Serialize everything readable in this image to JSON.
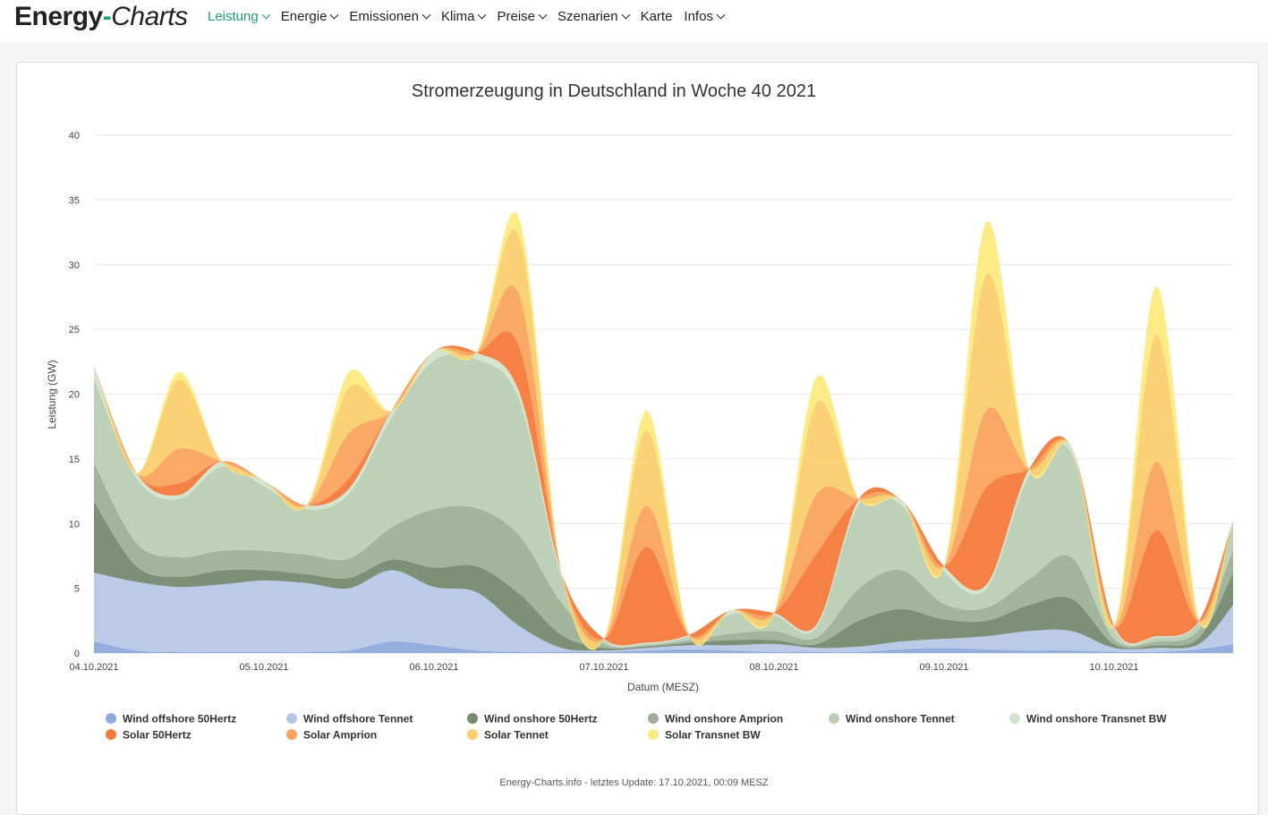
{
  "nav": {
    "logo_main": "Energy",
    "logo_dash": "-",
    "logo_italic": "Charts",
    "items": [
      {
        "label": "Leistung",
        "active": true,
        "dropdown": true
      },
      {
        "label": "Energie",
        "active": false,
        "dropdown": true
      },
      {
        "label": "Emissionen",
        "active": false,
        "dropdown": true
      },
      {
        "label": "Klima",
        "active": false,
        "dropdown": true
      },
      {
        "label": "Preise",
        "active": false,
        "dropdown": true
      },
      {
        "label": "Szenarien",
        "active": false,
        "dropdown": true
      },
      {
        "label": "Karte",
        "active": false,
        "dropdown": false
      },
      {
        "label": "Infos",
        "active": false,
        "dropdown": true
      }
    ]
  },
  "colors": {
    "accent": "#1e9e7a",
    "grid": "#e6e6e6"
  },
  "chart_data": {
    "type": "area",
    "stacked": true,
    "title": "Stromerzeugung in Deutschland in Woche 40 2021",
    "xlabel": "Datum (MESZ)",
    "ylabel": "Leistung (GW)",
    "ylim": [
      0,
      40
    ],
    "yticks": [
      0,
      5,
      10,
      15,
      20,
      25,
      30,
      35,
      40
    ],
    "xlim": [
      0,
      6.7
    ],
    "xticks": [
      0,
      1,
      2,
      3,
      4,
      5,
      6
    ],
    "xtick_labels": [
      "04.10.2021",
      "05.10.2021",
      "06.10.2021",
      "07.10.2021",
      "08.10.2021",
      "09.10.2021",
      "10.10.2021"
    ],
    "x": [
      0,
      0.25,
      0.5,
      0.75,
      1.0,
      1.25,
      1.5,
      1.75,
      2.0,
      2.25,
      2.5,
      2.75,
      3.0,
      3.25,
      3.5,
      3.75,
      4.0,
      4.25,
      4.5,
      4.75,
      5.0,
      5.25,
      5.5,
      5.75,
      6.0,
      6.25,
      6.5,
      6.7
    ],
    "series": [
      {
        "name": "Wind offshore 50Hertz",
        "color": "#8fa9dc",
        "values": [
          0.9,
          0.2,
          0.1,
          0.1,
          0.1,
          0.1,
          0.2,
          0.9,
          0.6,
          0.2,
          0.1,
          0.1,
          0.1,
          0.2,
          0.3,
          0.2,
          0.1,
          0.1,
          0.1,
          0.3,
          0.4,
          0.3,
          0.2,
          0.2,
          0.1,
          0.1,
          0.3,
          0.7
        ]
      },
      {
        "name": "Wind offshore Tennet",
        "color": "#b7c8e6",
        "values": [
          5.3,
          5.3,
          5.0,
          5.2,
          5.5,
          5.3,
          4.8,
          5.5,
          4.5,
          4.5,
          2.0,
          0.3,
          0.1,
          0.2,
          0.3,
          0.4,
          0.6,
          0.3,
          0.4,
          0.6,
          0.7,
          1.0,
          1.5,
          1.5,
          0.3,
          0.3,
          0.4,
          3.0
        ]
      },
      {
        "name": "Wind onshore 50Hertz",
        "color": "#758a70",
        "values": [
          5.5,
          1.2,
          0.8,
          1.1,
          0.8,
          0.7,
          0.8,
          0.8,
          1.5,
          2.0,
          2.5,
          1.0,
          0.2,
          0.1,
          0.2,
          0.4,
          0.3,
          0.3,
          2.0,
          2.5,
          1.5,
          1.2,
          2.0,
          2.5,
          0.3,
          0.2,
          0.5,
          2.5
        ]
      },
      {
        "name": "Wind onshore Amprion",
        "color": "#9db097",
        "values": [
          3.0,
          1.8,
          1.5,
          1.5,
          1.5,
          1.5,
          1.5,
          2.5,
          4.5,
          4.5,
          4.5,
          2.5,
          0.3,
          0.1,
          0.2,
          0.5,
          0.7,
          0.5,
          2.5,
          3.0,
          1.2,
          1.0,
          2.0,
          3.2,
          0.4,
          0.3,
          0.6,
          1.8
        ]
      },
      {
        "name": "Wind onshore Tennet",
        "color": "#bacfb4",
        "values": [
          6.5,
          5.0,
          4.5,
          6.5,
          5.0,
          3.5,
          5.0,
          8.5,
          11.5,
          11.5,
          10.5,
          2.0,
          0.3,
          0.1,
          0.3,
          1.5,
          1.2,
          0.8,
          6.5,
          5.0,
          2.5,
          1.5,
          8.0,
          8.0,
          0.8,
          0.3,
          0.6,
          2.0
        ]
      },
      {
        "name": "Wind onshore Transnet BW",
        "color": "#d2e4cc",
        "values": [
          1.0,
          0.4,
          0.3,
          0.4,
          0.4,
          0.3,
          0.4,
          0.5,
          0.7,
          0.5,
          0.6,
          0.3,
          0.1,
          0.1,
          0.1,
          0.3,
          0.2,
          0.2,
          0.4,
          0.4,
          0.4,
          0.3,
          0.5,
          0.5,
          0.2,
          0.1,
          0.1,
          0.3
        ]
      },
      {
        "name": "Solar 50Hertz",
        "color": "#f57a3c",
        "values": [
          0,
          0,
          0.9,
          0,
          0,
          0,
          0.8,
          0,
          0,
          0,
          3.5,
          0,
          0,
          7.4,
          0,
          0,
          0,
          5.5,
          0,
          0,
          0,
          7.5,
          0,
          0,
          0,
          8.2,
          0,
          0
        ]
      },
      {
        "name": "Solar Amprion",
        "color": "#f9a35e",
        "values": [
          0,
          0,
          2.7,
          0,
          0,
          0,
          3.5,
          0,
          0,
          0,
          4.0,
          0,
          0,
          3.2,
          0,
          0,
          0,
          4.6,
          0,
          0,
          0,
          6.0,
          0,
          0,
          0,
          5.3,
          0,
          0
        ]
      },
      {
        "name": "Solar Tennet",
        "color": "#fbcf6f",
        "values": [
          0,
          0,
          5.3,
          0,
          0,
          0,
          3.5,
          0,
          0,
          0,
          4.5,
          0,
          0,
          5.8,
          0,
          0,
          0,
          7.0,
          0,
          0,
          0,
          10.5,
          0,
          0,
          0,
          9.8,
          0,
          0
        ]
      },
      {
        "name": "Solar Transnet BW",
        "color": "#fdea80",
        "values": [
          0,
          0,
          0.6,
          0,
          0,
          0,
          1.2,
          0,
          0,
          0,
          1.4,
          0,
          0,
          1.5,
          0,
          0,
          0,
          2.0,
          0,
          0,
          0,
          4.0,
          0,
          0,
          0,
          3.7,
          0,
          0
        ]
      }
    ],
    "legend_position": "bottom"
  },
  "footer": {
    "text": "Energy-Charts.info - letztes Update: 17.10.2021, 00:09 MESZ"
  }
}
